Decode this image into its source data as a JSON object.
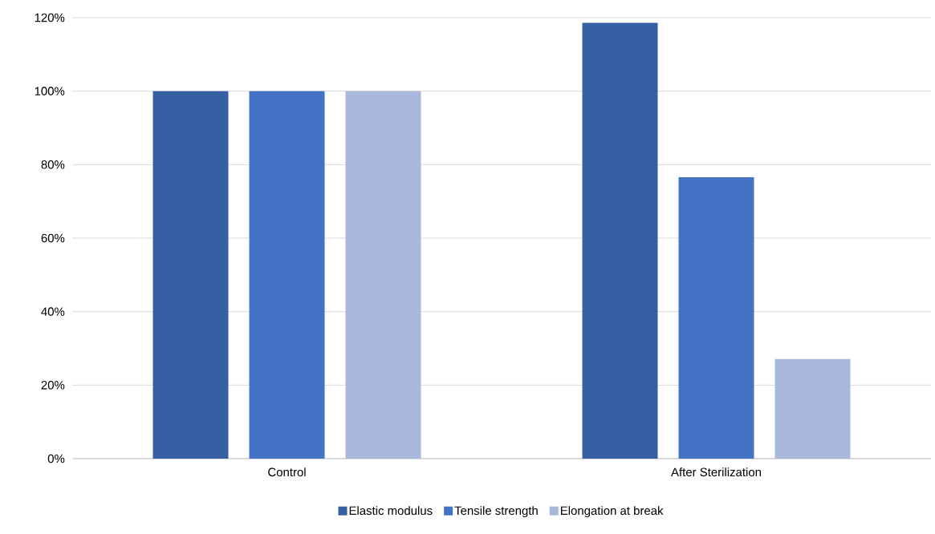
{
  "chart_data": {
    "type": "bar",
    "categories": [
      "Control",
      "After Sterilization"
    ],
    "series": [
      {
        "name": "Elastic modulus",
        "color": "#3560a3",
        "values": [
          100,
          118.6
        ]
      },
      {
        "name": "Tensile strength",
        "color": "#4472c4",
        "values": [
          100,
          76.6
        ]
      },
      {
        "name": "Elongation at break",
        "color": "#a9b7db",
        "values": [
          100,
          27.1
        ]
      }
    ],
    "ylim": [
      0,
      120
    ],
    "yticks": [
      {
        "value": 0,
        "label": "0%"
      },
      {
        "value": 20,
        "label": "20%"
      },
      {
        "value": 40,
        "label": "40%"
      },
      {
        "value": 60,
        "label": "60%"
      },
      {
        "value": 80,
        "label": "80%"
      },
      {
        "value": 100,
        "label": "100%"
      },
      {
        "value": 120,
        "label": "120%"
      }
    ],
    "grid": "y",
    "legend": "bottom"
  }
}
